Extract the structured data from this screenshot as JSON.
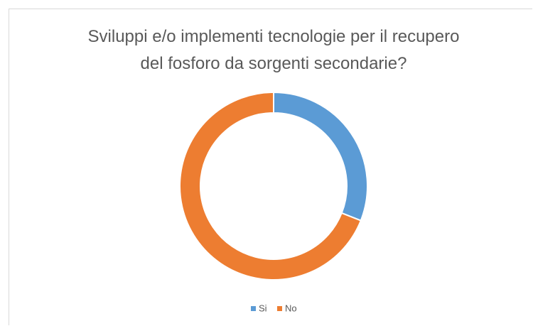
{
  "chart_data": {
    "type": "donut",
    "title": "Sviluppi e/o implementi tecnologie per il recupero del fosforo da sorgenti secondarie?",
    "categories": [
      "Si",
      "No"
    ],
    "values": [
      31,
      69
    ],
    "colors": [
      "#5b9bd5",
      "#ed7d31"
    ],
    "legend": "bottom"
  }
}
